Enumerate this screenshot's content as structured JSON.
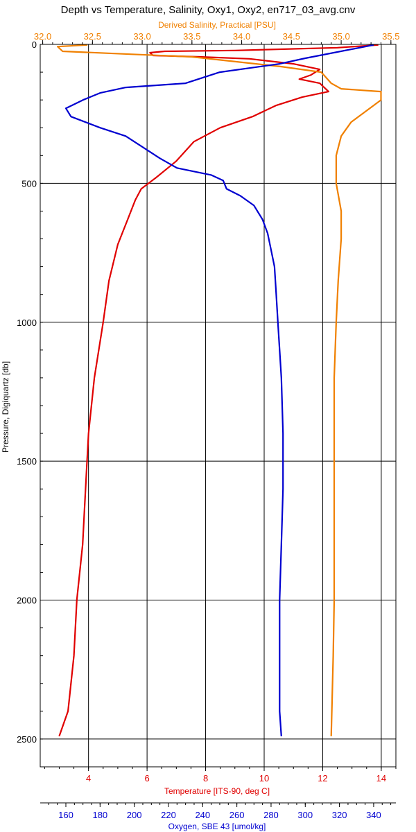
{
  "chart_data": {
    "type": "line",
    "title": "Depth vs Temperature, Salinity, Oxy1, Oxy2, en717_03_avg.cnv",
    "ylabel": "Pressure, Digiquartz [db]",
    "y_reversed": true,
    "ylim": [
      0,
      2600
    ],
    "yticks": [
      0,
      500,
      1000,
      1500,
      2000,
      2500
    ],
    "grid": true,
    "axes": {
      "salinity": {
        "label": "Derived Salinity, Practical [PSU]",
        "position": "top",
        "color": "#f08000",
        "lim": [
          31.975,
          35.55
        ],
        "ticks": [
          32.0,
          32.5,
          33.0,
          33.5,
          34.0,
          34.5,
          35.0,
          35.5
        ],
        "tick_labels": [
          "32.0",
          "32.5",
          "33.0",
          "33.5",
          "34.0",
          "34.5",
          "35.0",
          "35.5"
        ]
      },
      "temperature": {
        "label": "Temperature [ITS-90, deg C]",
        "position": "bottom",
        "color": "#e00000",
        "lim": [
          2.35,
          14.5
        ],
        "ticks": [
          4,
          6,
          8,
          10,
          12,
          14
        ],
        "tick_labels": [
          "4",
          "6",
          "8",
          "10",
          "12",
          "14"
        ]
      },
      "oxygen": {
        "label": "Oxygen, SBE 43 [umol/kg]",
        "position": "bottom",
        "color": "#0000d0",
        "lim": [
          145,
          353
        ],
        "ticks": [
          160,
          180,
          200,
          220,
          240,
          260,
          280,
          300,
          320,
          340
        ],
        "tick_labels": [
          "160",
          "180",
          "200",
          "220",
          "240",
          "260",
          "280",
          "300",
          "320",
          "340"
        ]
      }
    },
    "series": [
      {
        "axis": "temperature",
        "color": "#e00000",
        "points": [
          [
            13.9,
            2
          ],
          [
            12.5,
            12
          ],
          [
            9.0,
            22
          ],
          [
            6.6,
            25
          ],
          [
            6.1,
            30
          ],
          [
            6.2,
            40
          ],
          [
            7.8,
            45
          ],
          [
            9.5,
            52
          ],
          [
            11.0,
            70
          ],
          [
            11.9,
            90
          ],
          [
            11.6,
            110
          ],
          [
            11.2,
            125
          ],
          [
            11.9,
            140
          ],
          [
            12.2,
            170
          ],
          [
            11.3,
            190
          ],
          [
            10.4,
            220
          ],
          [
            9.6,
            260
          ],
          [
            8.5,
            300
          ],
          [
            7.6,
            350
          ],
          [
            7.0,
            420
          ],
          [
            6.3,
            480
          ],
          [
            5.8,
            520
          ],
          [
            5.6,
            560
          ],
          [
            5.3,
            640
          ],
          [
            5.0,
            720
          ],
          [
            4.7,
            850
          ],
          [
            4.5,
            1000
          ],
          [
            4.2,
            1200
          ],
          [
            4.0,
            1400
          ],
          [
            3.9,
            1600
          ],
          [
            3.8,
            1800
          ],
          [
            3.6,
            2000
          ],
          [
            3.5,
            2200
          ],
          [
            3.3,
            2400
          ],
          [
            3.0,
            2490
          ]
        ]
      },
      {
        "axis": "salinity",
        "color": "#f08000",
        "points": [
          [
            32.45,
            2
          ],
          [
            32.15,
            8
          ],
          [
            32.2,
            25
          ],
          [
            33.5,
            45
          ],
          [
            34.4,
            80
          ],
          [
            34.8,
            100
          ],
          [
            34.9,
            140
          ],
          [
            35.0,
            160
          ],
          [
            35.4,
            170
          ],
          [
            35.4,
            200
          ],
          [
            35.1,
            280
          ],
          [
            35.0,
            330
          ],
          [
            34.95,
            400
          ],
          [
            34.95,
            500
          ],
          [
            35.0,
            600
          ],
          [
            35.0,
            700
          ],
          [
            34.97,
            850
          ],
          [
            34.95,
            1000
          ],
          [
            34.93,
            1200
          ],
          [
            34.93,
            1500
          ],
          [
            34.93,
            2000
          ],
          [
            34.92,
            2200
          ],
          [
            34.9,
            2490
          ]
        ]
      },
      {
        "axis": "oxygen",
        "color": "#0000d0",
        "points": [
          [
            340,
            2
          ],
          [
            300,
            50
          ],
          [
            285,
            70
          ],
          [
            250,
            100
          ],
          [
            230,
            140
          ],
          [
            195,
            155
          ],
          [
            180,
            175
          ],
          [
            170,
            200
          ],
          [
            160,
            230
          ],
          [
            163,
            260
          ],
          [
            180,
            300
          ],
          [
            195,
            330
          ],
          [
            205,
            370
          ],
          [
            215,
            410
          ],
          [
            225,
            445
          ],
          [
            245,
            470
          ],
          [
            252,
            490
          ],
          [
            254,
            520
          ],
          [
            262,
            545
          ],
          [
            270,
            580
          ],
          [
            275,
            630
          ],
          [
            278,
            680
          ],
          [
            280,
            740
          ],
          [
            282,
            800
          ],
          [
            283,
            900
          ],
          [
            284,
            1000
          ],
          [
            285,
            1100
          ],
          [
            286,
            1200
          ],
          [
            287,
            1400
          ],
          [
            287,
            1600
          ],
          [
            286,
            1800
          ],
          [
            285,
            2000
          ],
          [
            285,
            2200
          ],
          [
            285,
            2400
          ],
          [
            286,
            2490
          ]
        ]
      }
    ]
  }
}
